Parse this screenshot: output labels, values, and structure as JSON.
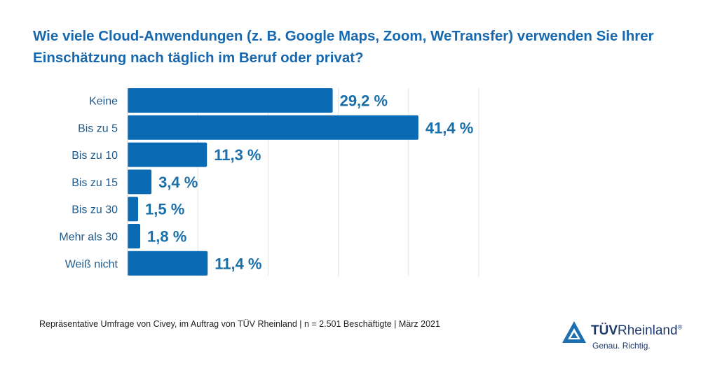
{
  "title": "Wie viele Cloud-Anwendungen (z. B. Google Maps, Zoom, WeTransfer) verwenden Sie Ihrer Einschätzung nach täglich im Beruf oder privat?",
  "chart_data": {
    "type": "bar",
    "orientation": "horizontal",
    "categories": [
      "Keine",
      "Bis zu 5",
      "Bis zu 10",
      "Bis zu 15",
      "Bis zu 30",
      "Mehr als 30",
      "Weiß nicht"
    ],
    "values": [
      29.2,
      41.4,
      11.3,
      3.4,
      1.5,
      1.8,
      11.4
    ],
    "value_labels": [
      "29,2 %",
      "41,4 %",
      "11,3 %",
      "3,4 %",
      "1,5 %",
      "1,8 %",
      "11,4 %"
    ],
    "xlim": [
      0,
      50
    ],
    "grid": true,
    "bar_color": "#0a6ab4",
    "label_color": "#1a6fa8",
    "category_color": "#1f5a8a"
  },
  "source": "Repräsentative Umfrage von Civey, im Auftrag von TÜV Rheinland | n = 2.501 Beschäftigte | März 2021",
  "logo": {
    "brand_bold": "TÜV",
    "brand_rest": "Rheinland",
    "reg": "®",
    "tagline": "Genau. Richtig.",
    "icon": "tuv-triangle-icon",
    "color": "#1f3b6e"
  }
}
